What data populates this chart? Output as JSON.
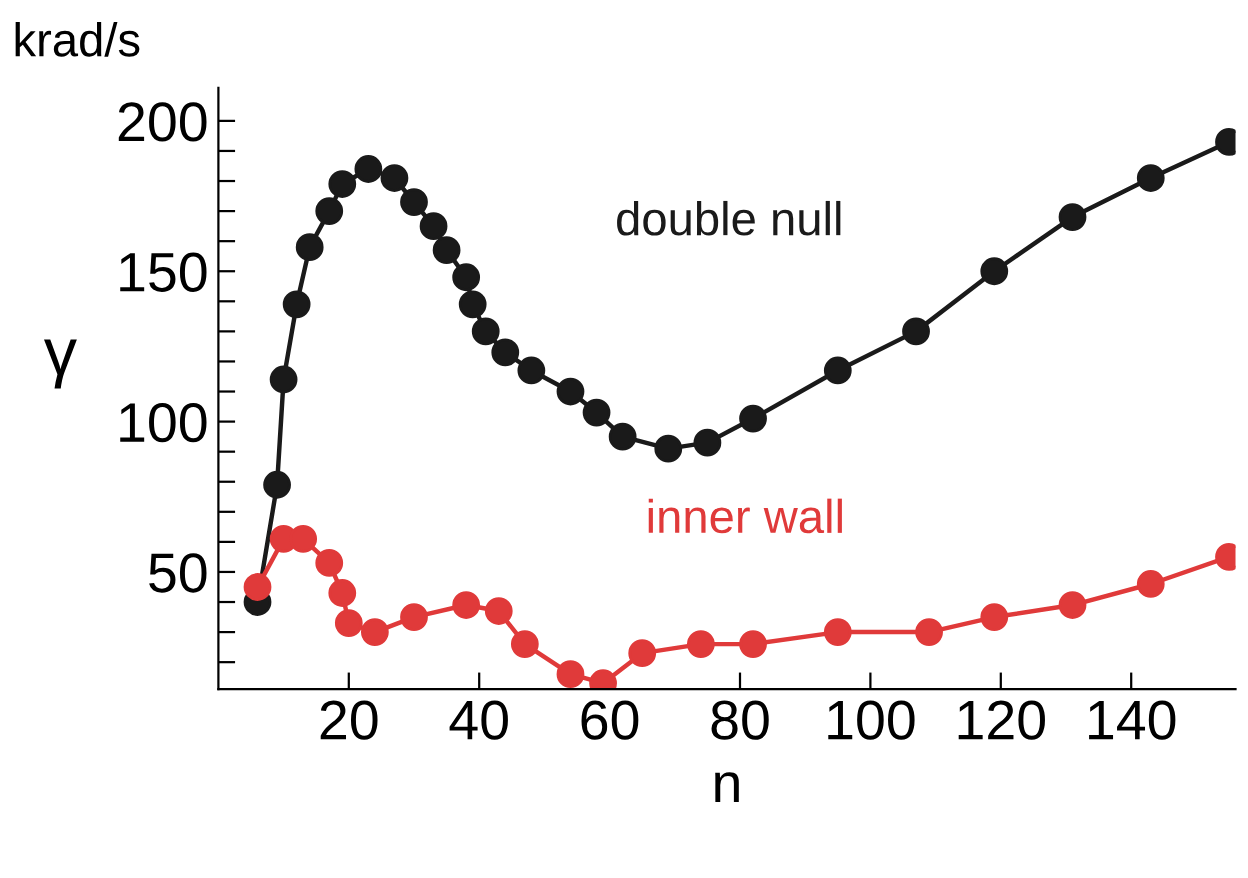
{
  "chart_data": {
    "type": "line",
    "ylabel": "γ",
    "xlabel": "n",
    "annotations": [
      "krad/s"
    ],
    "xlim": [
      0,
      156
    ],
    "xticks": [
      20,
      40,
      60,
      80,
      100,
      120,
      140
    ],
    "ylim": [
      11,
      211
    ],
    "yticks": [
      {
        "value": 20,
        "label": null
      },
      {
        "value": 30,
        "label": null
      },
      {
        "value": 40,
        "label": null
      },
      50,
      {
        "value": 60,
        "label": null
      },
      {
        "value": 70,
        "label": null
      },
      {
        "value": 80,
        "label": null
      },
      {
        "value": 90,
        "label": null
      },
      100,
      {
        "value": 110,
        "label": null
      },
      {
        "value": 120,
        "label": null
      },
      {
        "value": 130,
        "label": null
      },
      {
        "value": 140,
        "label": null
      },
      150,
      {
        "value": 160,
        "label": null
      },
      {
        "value": 170,
        "label": null
      },
      {
        "value": 180,
        "label": null
      },
      {
        "value": 190,
        "label": null
      },
      200
    ],
    "grid": false,
    "legend": false,
    "marker": "circle",
    "line_style": "solid",
    "series": [
      {
        "name": "double null",
        "color": "#1a1a1a",
        "x": [
          6,
          9,
          10,
          12,
          14,
          17,
          19,
          23,
          27,
          30,
          33,
          35,
          38,
          39,
          41,
          44,
          48,
          54,
          58,
          62,
          69,
          75,
          82,
          95,
          107,
          119,
          131,
          143,
          155
        ],
        "values": [
          40,
          79,
          114,
          139,
          158,
          170,
          179,
          184,
          181,
          173,
          165,
          157,
          148,
          139,
          130,
          123,
          117,
          110,
          103,
          95,
          91,
          93,
          101,
          117,
          130,
          150,
          168,
          181,
          193
        ]
      },
      {
        "name": "inner wall",
        "color": "#e03a3a",
        "x": [
          6,
          10,
          13,
          17,
          19,
          20,
          24,
          30,
          38,
          43,
          47,
          54,
          59,
          65,
          74,
          82,
          95,
          109,
          119,
          131,
          143,
          155
        ],
        "values": [
          45,
          61,
          61,
          53,
          43,
          33,
          30,
          35,
          39,
          37,
          26,
          16,
          13,
          23,
          26,
          26,
          30,
          30,
          35,
          39,
          46,
          55
        ]
      }
    ]
  }
}
